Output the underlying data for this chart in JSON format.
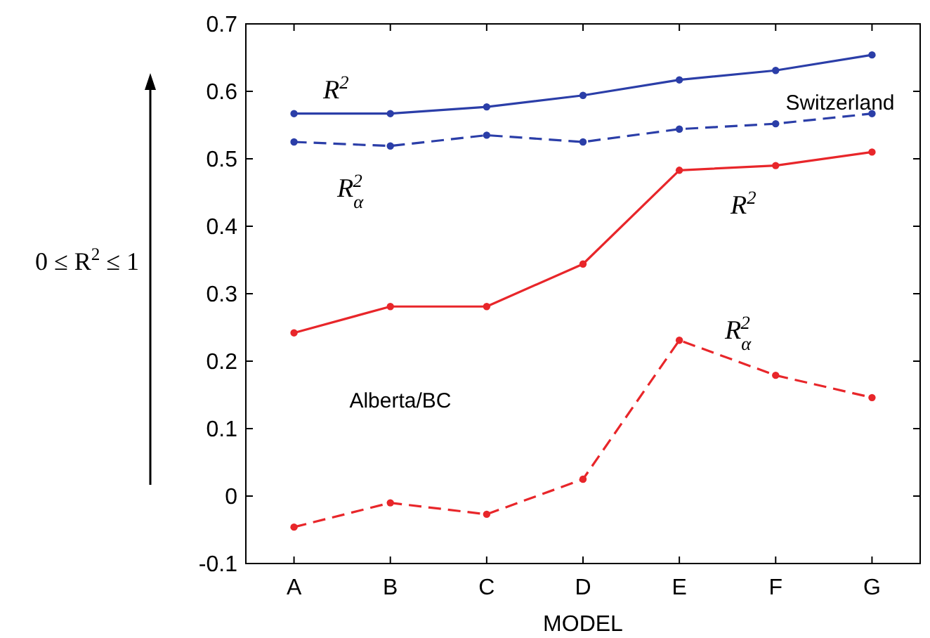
{
  "chart_data": {
    "type": "line",
    "xlabel": "MODEL",
    "ylabel": "0 ≤ R$^{2}$ ≤ 1",
    "categories": [
      "A",
      "B",
      "C",
      "D",
      "E",
      "F",
      "G"
    ],
    "series": [
      {
        "color": "#2b3ea8",
        "values": [
          0.567,
          0.567,
          0.577,
          0.594,
          0.617,
          0.631,
          0.654
        ],
        "line_style": "solid"
      },
      {
        "color": "#2b3ea8",
        "values": [
          0.525,
          0.519,
          0.535,
          0.525,
          0.544,
          0.552,
          0.567
        ],
        "line_style": "dashed"
      },
      {
        "color": "#e8262a",
        "values": [
          0.242,
          0.281,
          0.281,
          0.344,
          0.483,
          0.49,
          0.51
        ],
        "line_style": "solid"
      },
      {
        "color": "#e8262a",
        "values": [
          -0.046,
          -0.01,
          -0.027,
          0.025,
          0.231,
          0.179,
          0.146
        ],
        "line_style": "dashed"
      }
    ],
    "ylim": [
      -0.1,
      0.7
    ],
    "yticks": [
      -0.1,
      0,
      0.1,
      0.2,
      0.3,
      0.4,
      0.5,
      0.6,
      0.7
    ],
    "marker": "circle",
    "grid": false,
    "annotations": [
      "R$^{2}$",
      "R$_{α}$$^{2}$",
      "R$^{2}$",
      "R$_{α}$$^{2}$",
      "Switzerland",
      "Alberta/BC"
    ]
  }
}
